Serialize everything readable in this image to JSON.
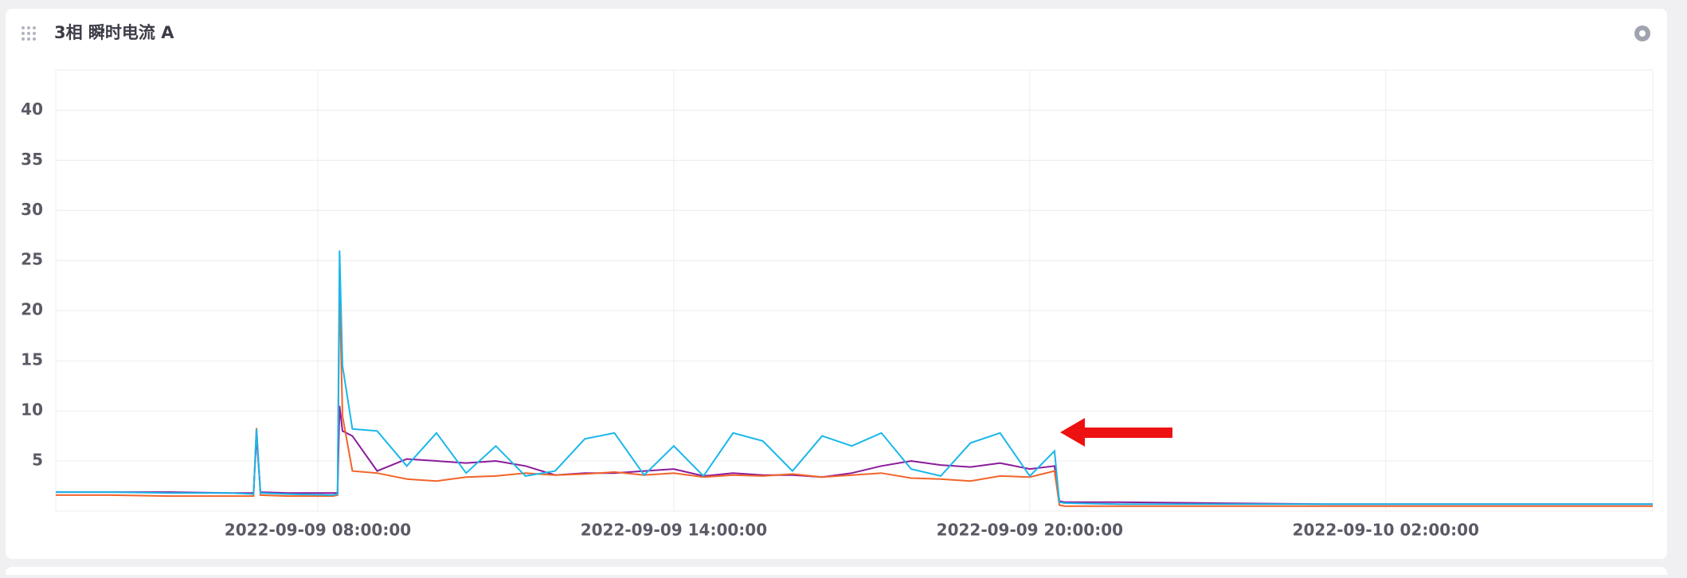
{
  "chart_data": {
    "type": "line",
    "title": "3相 瞬时电流 A",
    "x": [
      "2022-09-09 03:35:00",
      "2022-09-09 04:30:00",
      "2022-09-09 05:30:00",
      "2022-09-09 06:30:00",
      "2022-09-09 06:55:00",
      "2022-09-09 06:58:00",
      "2022-09-09 07:02:00",
      "2022-09-09 07:30:00",
      "2022-09-09 08:15:00",
      "2022-09-09 08:20:00",
      "2022-09-09 08:22:00",
      "2022-09-09 08:25:00",
      "2022-09-09 08:35:00",
      "2022-09-09 09:00:00",
      "2022-09-09 09:30:00",
      "2022-09-09 10:00:00",
      "2022-09-09 10:30:00",
      "2022-09-09 11:00:00",
      "2022-09-09 11:30:00",
      "2022-09-09 12:00:00",
      "2022-09-09 12:30:00",
      "2022-09-09 13:00:00",
      "2022-09-09 13:30:00",
      "2022-09-09 14:00:00",
      "2022-09-09 14:30:00",
      "2022-09-09 15:00:00",
      "2022-09-09 15:30:00",
      "2022-09-09 16:00:00",
      "2022-09-09 16:30:00",
      "2022-09-09 17:00:00",
      "2022-09-09 17:30:00",
      "2022-09-09 18:00:00",
      "2022-09-09 18:30:00",
      "2022-09-09 19:00:00",
      "2022-09-09 19:30:00",
      "2022-09-09 20:00:00",
      "2022-09-09 20:25:00",
      "2022-09-09 20:30:00",
      "2022-09-09 20:35:00",
      "2022-09-09 21:30:00",
      "2022-09-09 23:00:00",
      "2022-09-10 01:00:00",
      "2022-09-10 03:00:00",
      "2022-09-10 05:00:00",
      "2022-09-10 06:30:00"
    ],
    "series": [
      {
        "color": "#8b1a9b",
        "values": [
          1.9,
          1.9,
          1.9,
          1.8,
          1.8,
          7.5,
          1.9,
          1.8,
          1.8,
          1.8,
          10.5,
          8.0,
          7.5,
          4.0,
          5.2,
          5.0,
          4.8,
          5.0,
          4.5,
          3.6,
          3.8,
          3.8,
          4.0,
          4.2,
          3.5,
          3.8,
          3.6,
          3.6,
          3.4,
          3.8,
          4.5,
          5.0,
          4.6,
          4.4,
          4.8,
          4.2,
          4.5,
          1.0,
          0.9,
          0.9,
          0.8,
          0.7,
          0.7,
          0.7,
          0.7
        ]
      },
      {
        "color": "#f2642a",
        "values": [
          1.6,
          1.6,
          1.5,
          1.5,
          1.5,
          8.3,
          1.6,
          1.5,
          1.5,
          1.6,
          22.5,
          9.5,
          4.0,
          3.8,
          3.2,
          3.0,
          3.4,
          3.5,
          3.8,
          3.6,
          3.7,
          3.9,
          3.6,
          3.8,
          3.4,
          3.6,
          3.5,
          3.7,
          3.4,
          3.6,
          3.8,
          3.3,
          3.2,
          3.0,
          3.5,
          3.4,
          4.0,
          0.6,
          0.5,
          0.5,
          0.5,
          0.5,
          0.5,
          0.5,
          0.5
        ]
      },
      {
        "color": "#1ab7ea",
        "values": [
          1.9,
          1.9,
          1.8,
          1.8,
          1.7,
          8.2,
          1.8,
          1.7,
          1.6,
          1.7,
          26,
          14.5,
          8.2,
          8.0,
          4.5,
          7.8,
          3.8,
          6.5,
          3.5,
          4.0,
          7.2,
          7.8,
          3.6,
          6.5,
          3.5,
          7.8,
          7.0,
          4.0,
          7.5,
          6.5,
          7.8,
          4.2,
          3.5,
          6.8,
          7.8,
          3.5,
          6.0,
          0.9,
          0.8,
          0.7,
          0.7,
          0.7,
          0.7,
          0.7,
          0.7
        ]
      }
    ],
    "xlim": [
      "2022-09-09 03:35:00",
      "2022-09-10 06:30:00"
    ],
    "xticks": [
      "2022-09-09 08:00:00",
      "2022-09-09 14:00:00",
      "2022-09-09 20:00:00",
      "2022-09-10 02:00:00"
    ],
    "ylim": [
      0,
      44
    ],
    "yticks": [
      5,
      10,
      15,
      20,
      25,
      30,
      35,
      40
    ],
    "grid": true
  }
}
